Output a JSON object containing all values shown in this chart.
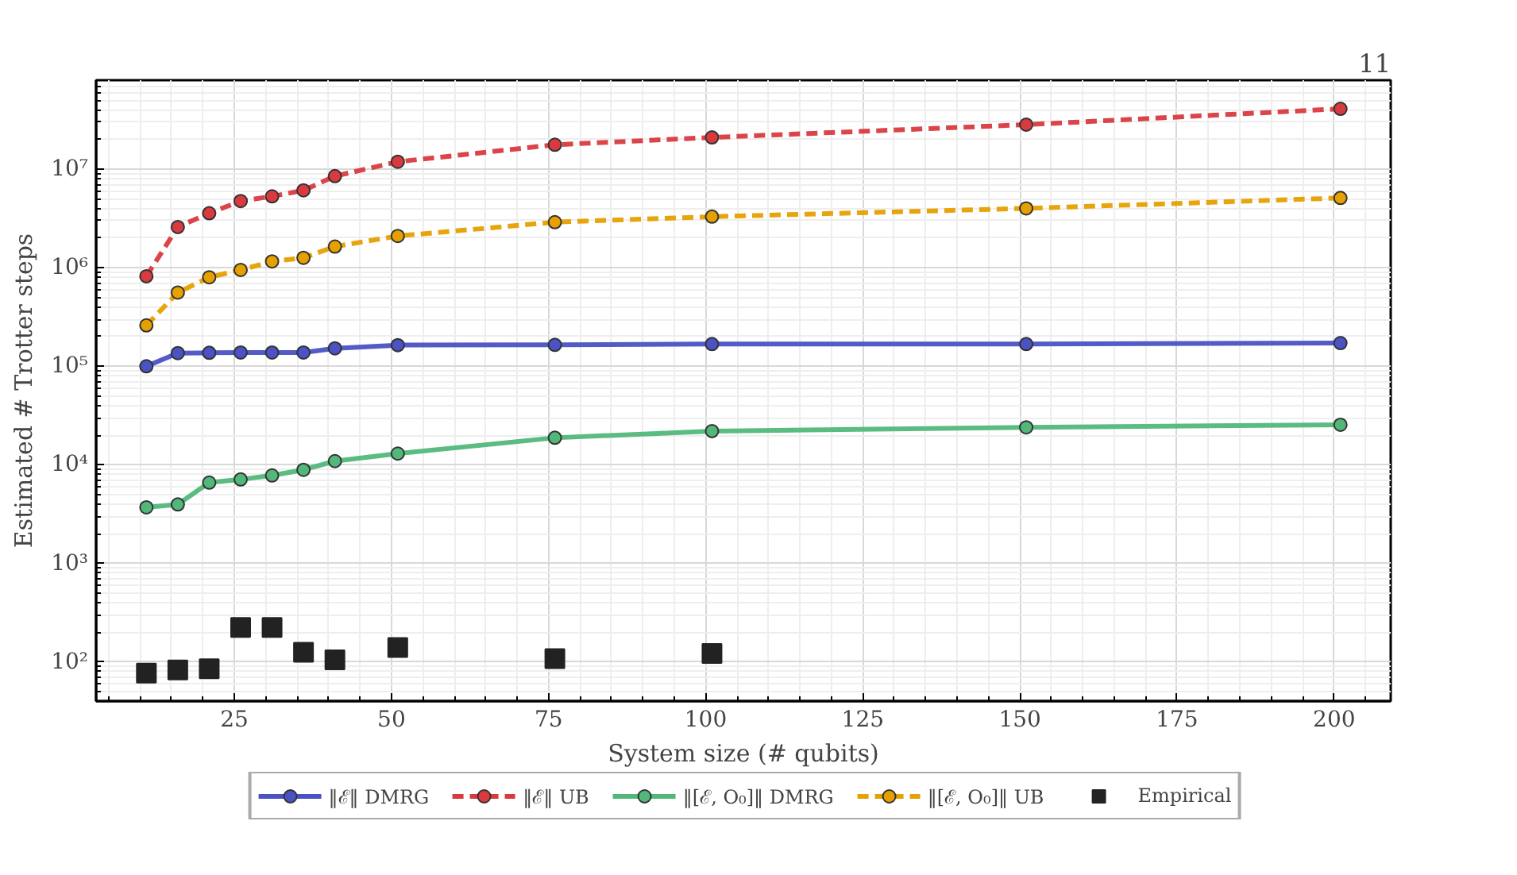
{
  "chart_data": {
    "type": "line",
    "xlabel": "System size (# qubits)",
    "ylabel": "Estimated # Trotter steps",
    "annotations": [
      "11"
    ],
    "x": [
      11,
      16,
      21,
      26,
      31,
      36,
      41,
      51,
      76,
      101,
      151,
      201
    ],
    "xlim": [
      3,
      209
    ],
    "xticks": [
      25,
      50,
      75,
      100,
      125,
      150,
      175,
      200
    ],
    "ylim": [
      40,
      80000000
    ],
    "log": "y",
    "yticks": [
      {
        "value": 100,
        "label": "10²"
      },
      {
        "value": 1000,
        "label": "10³"
      },
      {
        "value": 10000,
        "label": "10⁴"
      },
      {
        "value": 100000,
        "label": "10⁵"
      },
      {
        "value": 1000000,
        "label": "10⁶"
      },
      {
        "value": 10000000,
        "label": "10⁷"
      }
    ],
    "grid": true,
    "legend": "bottom",
    "marker": "circle",
    "series": [
      {
        "name": "‖ℰ‖ DMRG",
        "color": "#4a52c4",
        "line_style": "solid",
        "values": [
          100000,
          136000,
          137000,
          138000,
          138000,
          138000,
          152000,
          164000,
          165000,
          168000,
          168000,
          172000
        ]
      },
      {
        "name": "‖ℰ‖ UB",
        "color": "#d93a3f",
        "line_style": "dashed",
        "values": [
          820000,
          2590000,
          3570000,
          4750000,
          5300000,
          6100000,
          8500000,
          11900000,
          17700000,
          21000000,
          28300000,
          41000000
        ]
      },
      {
        "name": "‖[ℰ, O₀]‖ DMRG",
        "color": "#52b87a",
        "line_style": "solid",
        "values": [
          3700,
          3960,
          6600,
          7100,
          7800,
          8900,
          10900,
          13000,
          18800,
          22000,
          24000,
          25500
        ]
      },
      {
        "name": "‖[ℰ, O₀]‖ UB",
        "color": "#e6a000",
        "line_style": "dashed",
        "values": [
          260000,
          560000,
          800000,
          950000,
          1160000,
          1260000,
          1640000,
          2100000,
          2900000,
          3300000,
          4000000,
          5100000
        ]
      },
      {
        "name": "Empirical",
        "type": "scatter",
        "marker": "square",
        "color": "#222222",
        "x": [
          11,
          16,
          21,
          26,
          31,
          36,
          41,
          51,
          76,
          101
        ],
        "values": [
          77,
          83,
          85,
          224,
          224,
          125,
          105,
          140,
          108,
          122
        ]
      }
    ]
  }
}
